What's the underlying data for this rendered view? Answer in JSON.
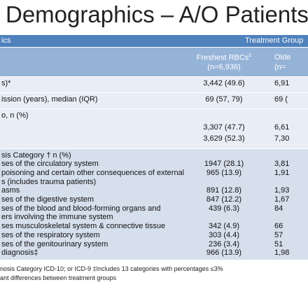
{
  "header": {
    "title": "Demographics – A/O Patients"
  },
  "table": {
    "group_header": {
      "label": "ics",
      "group": "Treatment Group"
    },
    "columns": [
      {
        "name": "Freshest RBCs",
        "sup": "£",
        "n": "(n=6,936)"
      },
      {
        "name": "Olde",
        "n": "(n="
      }
    ],
    "sections": [
      {
        "rows": [
          {
            "label": [
              "s)*"
            ],
            "values": [
              "3,442 (49.6)",
              "6,91"
            ]
          }
        ]
      },
      {
        "rows": [
          {
            "label": [
              "ission (years), median (IQR)"
            ],
            "values": [
              "69 (57, 79)",
              "69 ("
            ]
          }
        ]
      },
      {
        "rows": [
          {
            "label": [
              "o, n (%)"
            ]
          },
          {
            "values": [
              "3,307 (47.7)",
              "6,61"
            ]
          },
          {
            "values": [
              "3,629 (52.3)",
              "7,30"
            ]
          }
        ]
      },
      {
        "rows": [
          {
            "label": [
              "sis Category † n (%)"
            ]
          },
          {
            "label": [
              "ses of the circulatory system"
            ],
            "values": [
              "1947 (28.1)",
              "3,81"
            ]
          },
          {
            "label": [
              "poisoning and certain other consequences of external",
              "s (includes trauma patients)"
            ],
            "values": [
              "965 (13.9)",
              "1,91"
            ]
          },
          {
            "label": [
              "asms"
            ],
            "values": [
              "891 (12.8)",
              "1,93"
            ]
          },
          {
            "label": [
              "ses of the digestive system"
            ],
            "values": [
              "847 (12.2)",
              "1,67"
            ]
          },
          {
            "label": [
              "ses of the blood and blood-forming organs and",
              "ers involving the immune system"
            ],
            "values": [
              "439 (6.3)",
              "84"
            ]
          },
          {
            "label": [
              "ses musculoskeletal system & connective tissue"
            ],
            "values": [
              "342 (4.9)",
              "66"
            ]
          },
          {
            "label": [
              "ses of the respiratory system"
            ],
            "values": [
              "303 (4.4)",
              "57"
            ]
          },
          {
            "label": [
              "ses of the genitourinary system"
            ],
            "values": [
              "236 (3.4)",
              "51"
            ]
          },
          {
            "label": [
              "diagnosis‡"
            ],
            "values": [
              "966 (13.9)",
              "1,98"
            ]
          }
        ]
      }
    ]
  },
  "footnotes": [
    "nosis Category ICD-10; or ICD-9    ‡Includes 13 categories with percentages ≤3%",
    "ant differences between treatment groups"
  ]
}
